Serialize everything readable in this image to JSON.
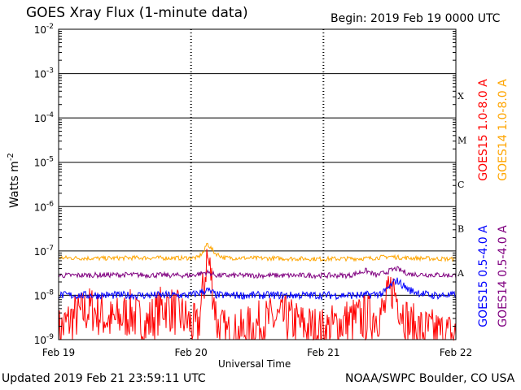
{
  "header": {
    "title": "GOES Xray Flux (1-minute data)",
    "begin": "Begin:  2019 Feb 19 0000 UTC"
  },
  "footer": {
    "updated": "Updated 2019 Feb 21 23:59:11 UTC",
    "credit": "NOAA/SWPC Boulder, CO USA"
  },
  "chart_data": {
    "type": "line",
    "title": "GOES Xray Flux (1-minute data)",
    "xlabel": "Universal Time",
    "ylabel": "Watts m",
    "ylabel_sup": "-2",
    "yscale": "log",
    "ylim": [
      1e-09,
      0.01
    ],
    "xlim_days": [
      0,
      3
    ],
    "x_tick_labels": [
      "Feb 19",
      "Feb 20",
      "Feb 21",
      "Feb 22"
    ],
    "y_tick_labels": [
      {
        "base": "10",
        "exp": "-2"
      },
      {
        "base": "10",
        "exp": "-3"
      },
      {
        "base": "10",
        "exp": "-4"
      },
      {
        "base": "10",
        "exp": "-5"
      },
      {
        "base": "10",
        "exp": "-6"
      },
      {
        "base": "10",
        "exp": "-7"
      },
      {
        "base": "10",
        "exp": "-8"
      },
      {
        "base": "10",
        "exp": "-9"
      }
    ],
    "flare_classes": [
      "X",
      "M",
      "C",
      "B",
      "A"
    ],
    "grid": true,
    "series": [
      {
        "name": "GOES15 1.0-8.0 A",
        "color": "#ff0000",
        "points": [
          [
            0,
            1.5e-09
          ],
          [
            0.1,
            3e-09
          ],
          [
            0.25,
            5e-09
          ],
          [
            0.4,
            2.5e-09
          ],
          [
            0.55,
            4e-09
          ],
          [
            0.65,
            2e-09
          ],
          [
            0.8,
            6e-09
          ],
          [
            0.95,
            3e-09
          ],
          [
            1.05,
            1.6e-09
          ],
          [
            1.1,
            1.8e-08
          ],
          [
            1.12,
            8e-08
          ],
          [
            1.15,
            3e-08
          ],
          [
            1.2,
            2e-09
          ],
          [
            1.3,
            1.1e-09
          ],
          [
            1.4,
            1.5e-09
          ],
          [
            1.55,
            2.5e-09
          ],
          [
            1.7,
            3e-09
          ],
          [
            1.85,
            2e-09
          ],
          [
            2.0,
            1.5e-09
          ],
          [
            2.15,
            2.5e-09
          ],
          [
            2.3,
            3e-09
          ],
          [
            2.45,
            4e-09
          ],
          [
            2.52,
            1.5e-08
          ],
          [
            2.57,
            7e-09
          ],
          [
            2.65,
            2e-09
          ],
          [
            2.8,
            1.5e-09
          ],
          [
            3.0,
            1.2e-09
          ]
        ]
      },
      {
        "name": "GOES14 1.0-8.0 A",
        "color": "#ffa500",
        "points": [
          [
            0,
            7e-08
          ],
          [
            0.3,
            6.8e-08
          ],
          [
            0.6,
            7e-08
          ],
          [
            0.9,
            6.9e-08
          ],
          [
            1.05,
            7e-08
          ],
          [
            1.1,
            1e-07
          ],
          [
            1.12,
            1.5e-07
          ],
          [
            1.18,
            9e-08
          ],
          [
            1.25,
            7e-08
          ],
          [
            1.6,
            6.8e-08
          ],
          [
            2.0,
            6.6e-08
          ],
          [
            2.35,
            6.8e-08
          ],
          [
            2.5,
            7.5e-08
          ],
          [
            2.6,
            7e-08
          ],
          [
            3.0,
            6.5e-08
          ]
        ]
      },
      {
        "name": "GOES15 0.5-4.0 A",
        "color": "#0000ff",
        "points": [
          [
            0,
            1e-08
          ],
          [
            0.5,
            1e-08
          ],
          [
            1.0,
            1e-08
          ],
          [
            1.12,
            1.3e-08
          ],
          [
            1.2,
            1e-08
          ],
          [
            1.7,
            1e-08
          ],
          [
            2.3,
            1e-08
          ],
          [
            2.45,
            1.1e-08
          ],
          [
            2.55,
            2.2e-08
          ],
          [
            2.65,
            1.3e-08
          ],
          [
            2.8,
            1e-08
          ],
          [
            3.0,
            1e-08
          ]
        ]
      },
      {
        "name": "GOES14 0.5-4.0 A",
        "color": "#800080",
        "points": [
          [
            0,
            2.8e-08
          ],
          [
            0.5,
            2.9e-08
          ],
          [
            1.0,
            2.8e-08
          ],
          [
            1.12,
            3.3e-08
          ],
          [
            1.2,
            2.8e-08
          ],
          [
            1.7,
            2.8e-08
          ],
          [
            2.2,
            2.8e-08
          ],
          [
            2.32,
            3.6e-08
          ],
          [
            2.4,
            2.8e-08
          ],
          [
            2.55,
            4e-08
          ],
          [
            2.65,
            3e-08
          ],
          [
            3.0,
            2.8e-08
          ]
        ]
      }
    ]
  }
}
